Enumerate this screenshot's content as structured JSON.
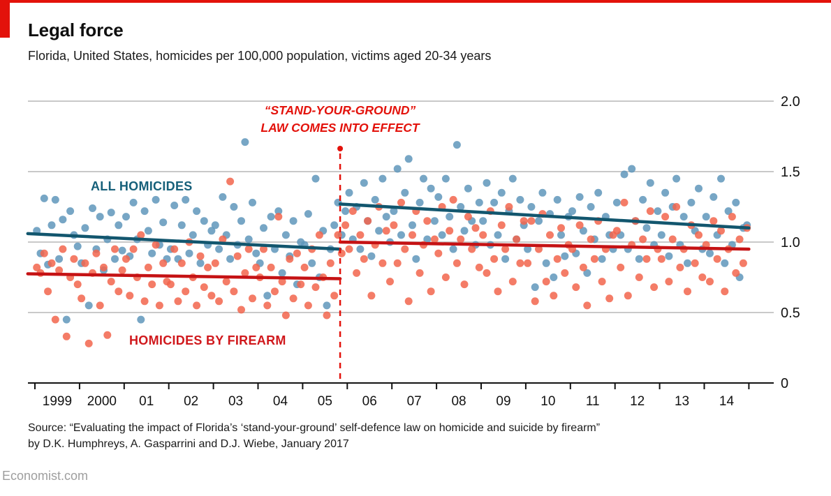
{
  "header": {
    "title": "Legal force",
    "subtitle": "Florida, United States, homicides per 100,000 population, victims aged 20-34 years"
  },
  "legend": {
    "all_homicides": "ALL HOMICIDES",
    "firearm": "HOMICIDES BY FIREARM"
  },
  "annotation": {
    "line1": "“STAND-YOUR-GROUND”",
    "line2": "LAW COMES INTO EFFECT"
  },
  "source": {
    "line1": "Source: “Evaluating the impact of Florida’s ‘stand-your-ground’ self-defence law on homicide and suicide by firearm”",
    "line2": "by D.K. Humphreys, A. Gasparrini and D.J. Wiebe, January 2017"
  },
  "footer": {
    "brand": "Economist.com"
  },
  "colors": {
    "accent_red": "#e3120b",
    "dot_blue": "#5f97bb",
    "dot_red": "#f2654c",
    "trend_blue": "#12566e",
    "trend_red": "#c51214",
    "gridline": "#c9c9c9",
    "axis": "#121212"
  },
  "chart_data": {
    "type": "scatter",
    "title": "Legal force",
    "subtitle": "Florida, United States, homicides per 100,000 population, victims aged 20-34 years",
    "frequency": "monthly",
    "grid": "horizontal-only",
    "x_axis": {
      "start_year": 1999,
      "end_year": 2015,
      "tick_years": [
        1999,
        2000,
        2001,
        2002,
        2003,
        2004,
        2005,
        2006,
        2007,
        2008,
        2009,
        2010,
        2011,
        2012,
        2013,
        2014,
        2015
      ],
      "tick_labels": [
        "1999",
        "2000",
        "01",
        "02",
        "03",
        "04",
        "05",
        "06",
        "07",
        "08",
        "09",
        "10",
        "11",
        "12",
        "13",
        "14"
      ]
    },
    "y_axis": {
      "min": 0,
      "max": 2.0,
      "ticks": [
        {
          "value": 2.0,
          "label": "2.0"
        },
        {
          "value": 1.5,
          "label": "1.5"
        },
        {
          "value": 1.0,
          "label": "1.0"
        },
        {
          "value": 0.5,
          "label": "0.5"
        },
        {
          "value": 0,
          "label": "0"
        }
      ]
    },
    "series": [
      {
        "name": "All homicides",
        "color": "#5f97bb",
        "values": [
          1.08,
          0.92,
          1.31,
          0.84,
          1.12,
          1.3,
          0.88,
          1.16,
          0.45,
          1.22,
          1.05,
          0.97,
          0.85,
          1.1,
          0.55,
          1.24,
          0.95,
          1.18,
          0.8,
          1.02,
          1.21,
          0.88,
          1.12,
          0.94,
          1.18,
          0.9,
          1.28,
          1.02,
          0.45,
          1.22,
          1.08,
          0.92,
          1.3,
          0.98,
          1.14,
          0.88,
          0.95,
          1.26,
          0.88,
          1.12,
          1.3,
          0.92,
          1.05,
          1.22,
          0.85,
          1.15,
          0.98,
          1.08,
          1.12,
          0.95,
          1.32,
          1.05,
          0.88,
          1.25,
          0.98,
          1.15,
          1.71,
          1.02,
          1.28,
          0.92,
          0.85,
          1.1,
          0.62,
          1.18,
          0.95,
          1.22,
          0.78,
          1.05,
          0.9,
          1.15,
          0.7,
          1.0,
          0.98,
          1.2,
          0.85,
          1.45,
          0.75,
          1.08,
          0.55,
          0.95,
          1.12,
          1.28,
          1.05,
          1.22,
          1.35,
          1.02,
          1.25,
          0.95,
          1.42,
          1.15,
          0.9,
          1.3,
          1.08,
          1.45,
          1.18,
          1.0,
          1.22,
          1.52,
          1.05,
          1.35,
          1.59,
          1.12,
          0.88,
          1.28,
          1.45,
          1.02,
          1.38,
          1.15,
          1.32,
          1.05,
          1.45,
          1.18,
          0.95,
          1.69,
          1.25,
          1.08,
          1.38,
          1.15,
          0.98,
          1.28,
          1.15,
          1.42,
          0.98,
          1.28,
          1.05,
          1.35,
          0.88,
          1.22,
          1.45,
          1.02,
          1.3,
          1.12,
          0.95,
          1.25,
          0.68,
          1.15,
          1.35,
          0.85,
          1.2,
          0.75,
          1.3,
          1.05,
          0.9,
          1.18,
          1.22,
          0.92,
          1.32,
          1.08,
          0.78,
          1.25,
          1.02,
          1.35,
          0.88,
          1.18,
          1.05,
          0.95,
          1.28,
          1.05,
          1.48,
          0.95,
          1.52,
          1.15,
          0.88,
          1.3,
          1.1,
          1.42,
          0.98,
          1.22,
          1.05,
          1.35,
          0.9,
          1.25,
          1.45,
          0.98,
          1.18,
          0.85,
          1.28,
          1.08,
          1.38,
          0.95,
          1.18,
          0.92,
          1.32,
          1.05,
          1.45,
          0.85,
          1.22,
          0.98,
          1.28,
          0.75,
          1.1,
          1.12
        ]
      },
      {
        "name": "Homicides by firearm",
        "color": "#f2654c",
        "values": [
          0.82,
          0.78,
          0.92,
          0.65,
          0.85,
          0.45,
          0.8,
          0.95,
          0.33,
          0.75,
          0.88,
          0.7,
          0.6,
          0.85,
          0.28,
          0.78,
          0.92,
          0.55,
          0.82,
          0.34,
          0.72,
          0.95,
          0.65,
          0.8,
          0.88,
          0.62,
          0.95,
          0.75,
          1.05,
          0.58,
          0.82,
          0.7,
          0.98,
          0.55,
          0.85,
          0.72,
          0.7,
          0.95,
          0.58,
          0.85,
          0.65,
          1.0,
          0.75,
          0.55,
          0.9,
          0.68,
          0.82,
          0.62,
          0.85,
          0.58,
          1.02,
          0.72,
          1.43,
          0.65,
          0.9,
          0.52,
          0.78,
          0.95,
          0.6,
          0.82,
          0.75,
          0.95,
          0.55,
          0.82,
          0.65,
          1.18,
          0.72,
          0.48,
          0.88,
          0.6,
          0.92,
          0.7,
          0.82,
          0.55,
          0.95,
          0.68,
          1.05,
          0.75,
          0.48,
          0.85,
          0.62,
          1.05,
          0.92,
          1.12,
          0.95,
          1.22,
          0.78,
          1.05,
          0.88,
          1.15,
          0.62,
          0.98,
          1.25,
          0.85,
          1.08,
          0.72,
          1.12,
          0.85,
          1.28,
          0.95,
          0.58,
          1.05,
          1.22,
          0.78,
          0.98,
          1.15,
          0.65,
          1.02,
          0.92,
          1.25,
          0.75,
          1.08,
          1.3,
          0.85,
          1.02,
          0.7,
          1.18,
          0.95,
          1.1,
          0.82,
          1.05,
          0.78,
          1.22,
          0.88,
          0.65,
          1.12,
          0.95,
          1.25,
          0.72,
          1.02,
          0.85,
          1.15,
          0.85,
          1.15,
          0.58,
          0.95,
          1.2,
          0.72,
          1.05,
          0.62,
          0.88,
          1.1,
          0.78,
          0.98,
          0.95,
          0.68,
          1.12,
          0.82,
          0.55,
          1.02,
          0.88,
          1.15,
          0.72,
          0.95,
          0.6,
          1.05,
          1.08,
          0.82,
          1.28,
          0.62,
          0.98,
          1.15,
          0.75,
          1.02,
          0.88,
          1.22,
          0.68,
          0.95,
          0.88,
          1.18,
          0.72,
          1.02,
          1.25,
          0.82,
          0.95,
          0.65,
          1.12,
          0.85,
          1.05,
          0.75,
          0.98,
          0.72,
          1.15,
          0.88,
          1.08,
          0.65,
          0.95,
          1.18,
          0.78,
          1.02,
          0.85,
          1.1
        ]
      }
    ],
    "trend_lines": [
      {
        "series": "All homicides",
        "color": "#12566e",
        "segments": [
          {
            "x0": 1998.84,
            "v0": 1.06,
            "x1": 2005.84,
            "v1": 0.95
          },
          {
            "x0": 2005.84,
            "v0": 1.27,
            "x1": 2015.0,
            "v1": 1.1
          }
        ]
      },
      {
        "series": "Homicides by firearm",
        "color": "#c51214",
        "segments": [
          {
            "x0": 1998.84,
            "v0": 0.775,
            "x1": 2005.84,
            "v1": 0.74
          },
          {
            "x0": 2005.84,
            "v0": 1.0,
            "x1": 2015.0,
            "v1": 0.95
          }
        ]
      }
    ],
    "event_line": {
      "x": 2005.84,
      "color": "#e3120b",
      "label_line1": "“STAND-YOUR-GROUND”",
      "label_line2": "LAW COMES INTO EFFECT"
    },
    "legend_position": "inline-labels"
  }
}
